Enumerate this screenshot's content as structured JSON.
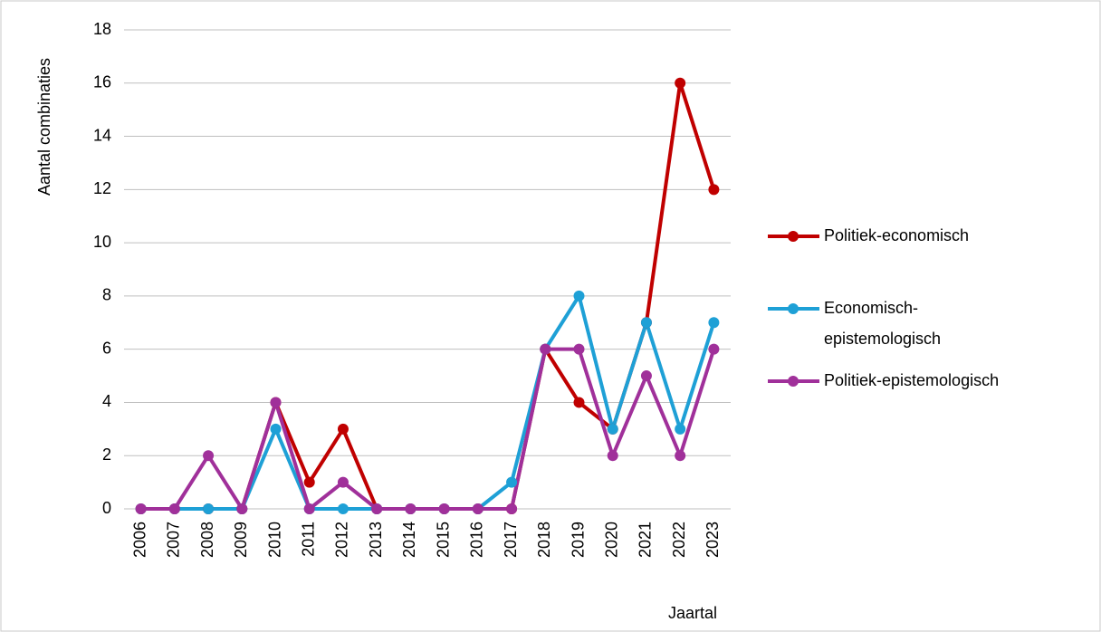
{
  "chart_data": {
    "type": "line",
    "y_label": "Aantal combinaties",
    "x_label": "Jaartal",
    "categories": [
      "2006",
      "2007",
      "2008",
      "2009",
      "2010",
      "2011",
      "2012",
      "2013",
      "2014",
      "2015",
      "2016",
      "2017",
      "2018",
      "2019",
      "2020",
      "2021",
      "2022",
      "2023"
    ],
    "series": [
      {
        "name": "Politiek-economisch",
        "color": "#c00000",
        "values": [
          0,
          0,
          0,
          0,
          4,
          1,
          3,
          0,
          0,
          0,
          0,
          0,
          6,
          4,
          3,
          7,
          16,
          12
        ]
      },
      {
        "name": "Economisch-epistemologisch",
        "color": "#1ea0d6",
        "values": [
          0,
          0,
          0,
          0,
          3,
          0,
          0,
          0,
          0,
          0,
          0,
          1,
          6,
          8,
          3,
          7,
          3,
          7
        ]
      },
      {
        "name": "Politiek-epistemologisch",
        "color": "#a0309a",
        "values": [
          0,
          0,
          2,
          0,
          4,
          0,
          1,
          0,
          0,
          0,
          0,
          0,
          6,
          6,
          2,
          5,
          2,
          6
        ]
      }
    ],
    "ylim": [
      0,
      18
    ],
    "yticks": [
      0,
      2,
      4,
      6,
      8,
      10,
      12,
      14,
      16,
      18
    ],
    "grid": true,
    "legend": "right"
  }
}
